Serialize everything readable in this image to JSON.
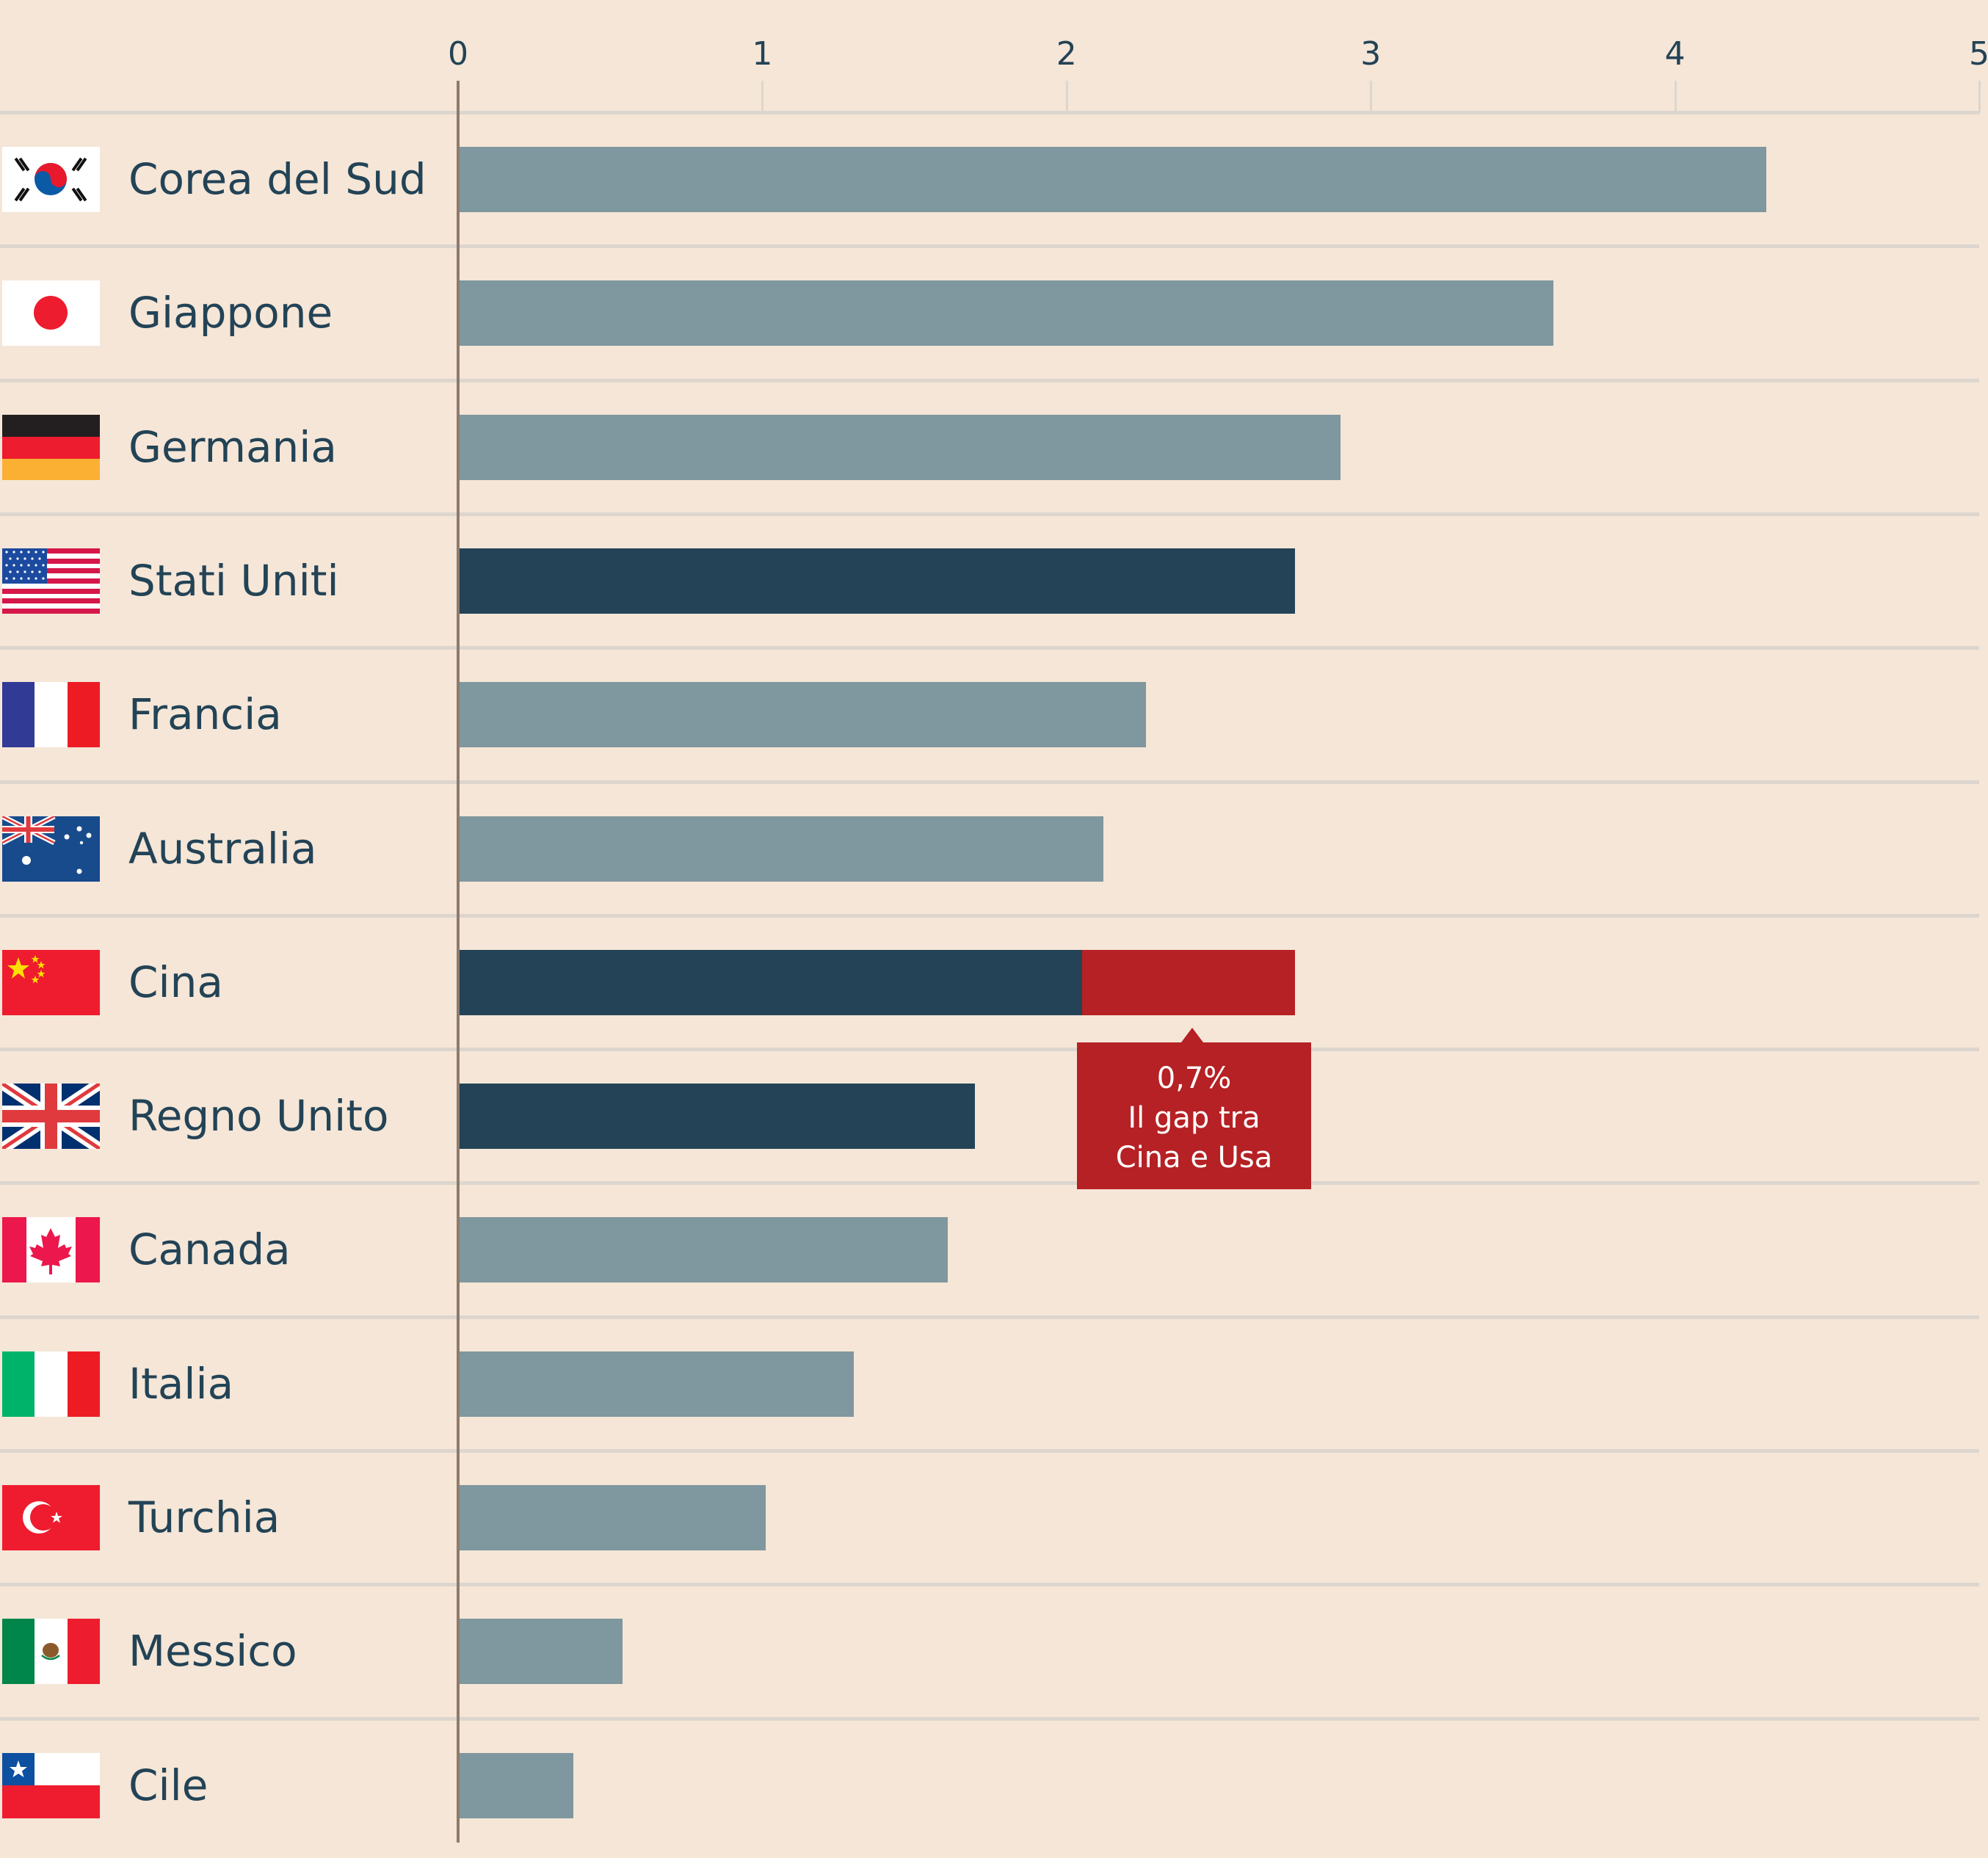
{
  "chart_data": {
    "type": "bar",
    "orientation": "horizontal",
    "title": "",
    "xlabel": "",
    "ylabel": "",
    "xlim": [
      0,
      5
    ],
    "xticks": [
      "0",
      "1",
      "2",
      "3",
      "4",
      "5"
    ],
    "grid": true,
    "categories": [
      "Corea del Sud",
      "Giappone",
      "Germania",
      "Stati Uniti",
      "Francia",
      "Australia",
      "Cina",
      "Regno Unito",
      "Canada",
      "Italia",
      "Turchia",
      "Messico",
      "Cile"
    ],
    "values": [
      4.3,
      3.6,
      2.9,
      2.75,
      2.26,
      2.12,
      2.05,
      1.7,
      1.61,
      1.3,
      1.01,
      0.54,
      0.38
    ],
    "highlight": [
      "normal",
      "normal",
      "normal",
      "highlight",
      "normal",
      "normal",
      "highlight",
      "highlight",
      "normal",
      "normal",
      "normal",
      "normal",
      "normal"
    ],
    "gap_segment": {
      "category": "Cina",
      "from": 2.05,
      "to": 2.75
    },
    "annotation": {
      "value": "0,7%",
      "lines": [
        "Il gap tra",
        "Cina e Usa"
      ]
    }
  },
  "flags": [
    "south-korea-flag-icon",
    "japan-flag-icon",
    "germany-flag-icon",
    "usa-flag-icon",
    "france-flag-icon",
    "australia-flag-icon",
    "china-flag-icon",
    "uk-flag-icon",
    "canada-flag-icon",
    "italy-flag-icon",
    "turkey-flag-icon",
    "mexico-flag-icon",
    "chile-flag-icon"
  ],
  "colors": {
    "background": "#f5e6d7",
    "bar_normal": "#7f979e",
    "bar_highlight": "#244357",
    "gap": "#b52124",
    "text": "#234356",
    "grid": "#ddd6ce",
    "axis": "#8f7b6c"
  }
}
